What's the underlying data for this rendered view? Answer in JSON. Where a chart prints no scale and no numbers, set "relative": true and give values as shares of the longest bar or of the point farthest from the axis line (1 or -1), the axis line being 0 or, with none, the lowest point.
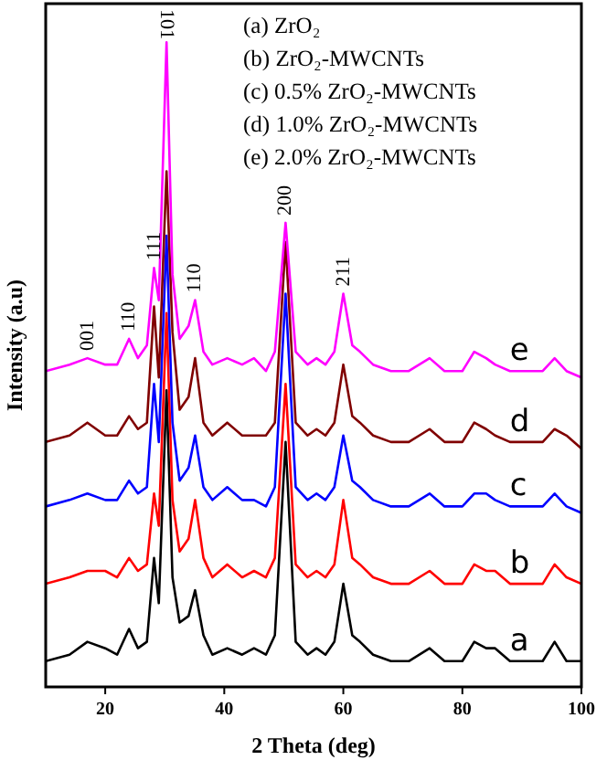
{
  "chart_data": {
    "type": "line",
    "relative": true,
    "xlabel": "2 Theta (deg)",
    "ylabel": "Intensity (a.u)",
    "xlim": [
      10,
      100
    ],
    "xticks": [
      20,
      40,
      60,
      80,
      100
    ],
    "tick_labels": "x",
    "grid": false,
    "marker": "none",
    "line_style": "solid",
    "x": [
      10,
      14,
      17,
      20,
      22,
      24,
      25.5,
      27,
      28.2,
      29,
      30.3,
      31.3,
      32.5,
      34,
      35.1,
      36.5,
      38,
      40.5,
      43,
      45,
      47,
      48.5,
      50.3,
      52,
      54,
      55.5,
      57,
      58.5,
      60,
      61.5,
      62.8,
      65,
      68,
      71,
      74.5,
      77,
      80,
      82,
      84,
      85.5,
      88,
      91,
      93.5,
      95.5,
      97.5,
      100
    ],
    "series": [
      {
        "name": "a",
        "color": "#000000",
        "values": [
          0.04,
          0.05,
          0.07,
          0.06,
          0.05,
          0.09,
          0.06,
          0.07,
          0.2,
          0.13,
          0.46,
          0.17,
          0.1,
          0.11,
          0.15,
          0.08,
          0.05,
          0.06,
          0.05,
          0.06,
          0.05,
          0.08,
          0.38,
          0.07,
          0.05,
          0.06,
          0.05,
          0.07,
          0.16,
          0.08,
          0.07,
          0.05,
          0.04,
          0.04,
          0.06,
          0.04,
          0.04,
          0.07,
          0.06,
          0.06,
          0.04,
          0.04,
          0.04,
          0.07,
          0.04,
          0.04
        ]
      },
      {
        "name": "b",
        "color": "#ff0000",
        "values": [
          0.16,
          0.17,
          0.18,
          0.18,
          0.17,
          0.2,
          0.18,
          0.19,
          0.3,
          0.25,
          0.58,
          0.29,
          0.21,
          0.23,
          0.29,
          0.2,
          0.17,
          0.19,
          0.17,
          0.18,
          0.17,
          0.2,
          0.47,
          0.19,
          0.17,
          0.18,
          0.17,
          0.19,
          0.29,
          0.2,
          0.19,
          0.17,
          0.16,
          0.16,
          0.18,
          0.16,
          0.16,
          0.19,
          0.18,
          0.18,
          0.16,
          0.16,
          0.16,
          0.19,
          0.17,
          0.16
        ]
      },
      {
        "name": "c",
        "color": "#0000ff",
        "values": [
          0.28,
          0.29,
          0.3,
          0.29,
          0.29,
          0.32,
          0.3,
          0.31,
          0.47,
          0.38,
          0.7,
          0.41,
          0.32,
          0.34,
          0.39,
          0.31,
          0.29,
          0.31,
          0.29,
          0.29,
          0.28,
          0.31,
          0.61,
          0.31,
          0.29,
          0.3,
          0.29,
          0.31,
          0.39,
          0.32,
          0.31,
          0.29,
          0.28,
          0.28,
          0.3,
          0.28,
          0.28,
          0.3,
          0.3,
          0.29,
          0.28,
          0.28,
          0.28,
          0.3,
          0.28,
          0.27
        ]
      },
      {
        "name": "d",
        "color": "#800000",
        "values": [
          0.38,
          0.39,
          0.41,
          0.39,
          0.39,
          0.42,
          0.4,
          0.41,
          0.59,
          0.48,
          0.8,
          0.55,
          0.43,
          0.45,
          0.51,
          0.41,
          0.39,
          0.41,
          0.39,
          0.39,
          0.39,
          0.41,
          0.69,
          0.41,
          0.39,
          0.4,
          0.39,
          0.41,
          0.5,
          0.42,
          0.41,
          0.39,
          0.38,
          0.38,
          0.4,
          0.38,
          0.38,
          0.41,
          0.4,
          0.39,
          0.38,
          0.38,
          0.38,
          0.4,
          0.39,
          0.37
        ]
      },
      {
        "name": "e",
        "color": "#ff00ff",
        "values": [
          0.49,
          0.5,
          0.51,
          0.5,
          0.5,
          0.54,
          0.51,
          0.53,
          0.65,
          0.6,
          1,
          0.64,
          0.54,
          0.56,
          0.6,
          0.52,
          0.5,
          0.51,
          0.5,
          0.51,
          0.49,
          0.52,
          0.72,
          0.52,
          0.5,
          0.51,
          0.5,
          0.52,
          0.61,
          0.53,
          0.52,
          0.5,
          0.49,
          0.49,
          0.51,
          0.49,
          0.49,
          0.52,
          0.51,
          0.5,
          0.49,
          0.49,
          0.49,
          0.51,
          0.49,
          0.48
        ]
      }
    ],
    "annotations": [
      {
        "text": "001",
        "x": 17,
        "y": 0.51
      },
      {
        "text": "110",
        "x": 24,
        "y": 0.54
      },
      {
        "text": "111",
        "x": 28.2,
        "y": 0.65
      },
      {
        "text": "101",
        "x": 30.3,
        "y": 1
      },
      {
        "text": "110",
        "x": 35.1,
        "y": 0.6
      },
      {
        "text": "200",
        "x": 50.3,
        "y": 0.72
      },
      {
        "text": "211",
        "x": 60,
        "y": 0.61
      },
      "(a) ZrO₂",
      "(b) ZrO₂-MWCNTs",
      "(c) 0.5% ZrO₂-MWCNTs",
      "(d) 1.0% ZrO₂-MWCNTs",
      "(e) 2.0% ZrO₂-MWCNTs"
    ]
  }
}
